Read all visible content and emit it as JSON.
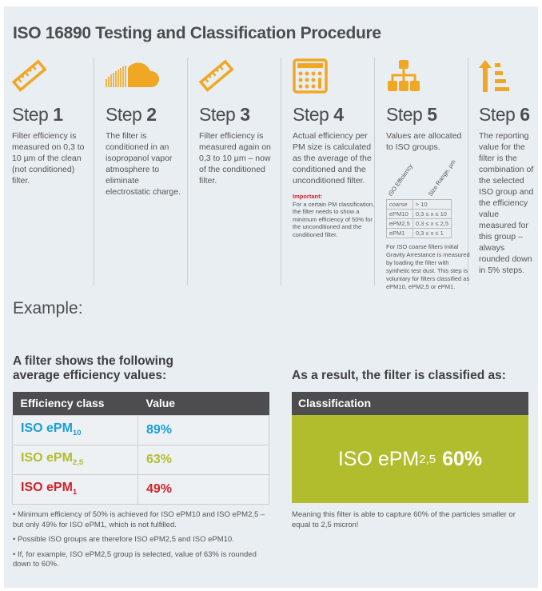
{
  "title": "ISO 16890 Testing and Classification Procedure",
  "colors": {
    "accent": "#f0a824",
    "blue": "#1a9ed9",
    "green": "#b2bd2e",
    "red": "#d2232a",
    "header": "#4d4d4f"
  },
  "steps": [
    {
      "word": "Step",
      "num": "1",
      "icon": "ruler-icon",
      "text": "Filter efficiency is measured on 0,3 to 10 µm of the clean (not conditioned) filter."
    },
    {
      "word": "Step",
      "num": "2",
      "icon": "cloud-icon",
      "text": "The filter is conditioned in an isopropanol vapor atmosphere to eliminate electrostatic charge."
    },
    {
      "word": "Step",
      "num": "3",
      "icon": "ruler-icon",
      "text": "Filter efficiency is measured again on 0,3 to 10 µm – now of the conditioned filter."
    },
    {
      "word": "Step",
      "num": "4",
      "icon": "calculator-icon",
      "text": "Actual efficiency per PM size is calculated as the average of the conditioned and the unconditioned filter.",
      "important_label": "Important:",
      "important_text": "For a certain PM classification, the filter needs to show a minimum efficiency of 50% for the unconditioned and the conditioned filter."
    },
    {
      "word": "Step",
      "num": "5",
      "icon": "hierarchy-icon",
      "text": "Values are allocated to ISO groups.",
      "col_headers": [
        "ISO Efficiency",
        "Size Range, µm"
      ],
      "rows": [
        [
          "coarse",
          "> 10"
        ],
        [
          "ePM10",
          "0,3 ≤ x ≤ 10"
        ],
        [
          "ePM2,5",
          "0,3 ≤ x ≤ 2,5"
        ],
        [
          "ePM1",
          "0,3 ≤ x ≤ 1"
        ]
      ],
      "note": "For ISO coarse filters Initial Gravity Arrestance is measured by loading the filter with synthetic test dust. This step is voluntary for filters classified as ePM10, ePM2,5 or ePM1."
    },
    {
      "word": "Step",
      "num": "6",
      "icon": "sort-ascending-icon",
      "text": "The reporting value for the filter is the combination of the selected ISO group and the efficiency value measured for this group – always rounded down in 5% steps."
    }
  ],
  "example": {
    "label": "Example:",
    "left_heading_1": "A filter shows the following",
    "left_heading_2": "average efficiency values:",
    "right_heading": "As a result, the filter is classified as:",
    "table_headers": [
      "Efficiency class",
      "Value"
    ],
    "rows": [
      {
        "prefix": "ISO ePM",
        "sub": "10",
        "value": "89%"
      },
      {
        "prefix": "ISO ePM",
        "sub": "2,5",
        "value": "63%"
      },
      {
        "prefix": "ISO ePM",
        "sub": "1",
        "value": "49%"
      }
    ],
    "classification_header": "Classification",
    "result_prefix": "ISO ePM",
    "result_sub": "2,5",
    "result_value": "60%",
    "bullets": [
      "Minimum efficiency of 50% is achieved for ISO ePM10 and ISO ePM2,5 – but only 49% for ISO ePM1, which is not fulfilled.",
      "Possible ISO groups are therefore ISO ePM2,5 and ISO ePM10.",
      "If, for example, ISO ePM2,5 group is selected, value of 63% is rounded down to 60%."
    ],
    "meaning": "Meaning this filter is able to capture 60% of the particles smaller or equal to 2,5 micron!"
  }
}
